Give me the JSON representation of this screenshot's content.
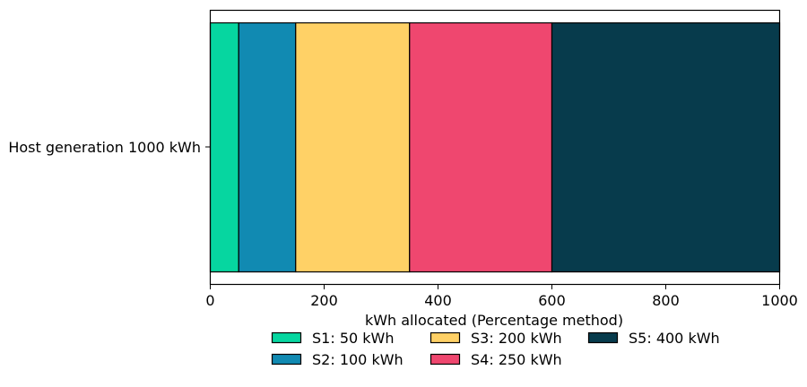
{
  "chart_data": {
    "type": "bar",
    "orientation": "horizontal-stacked",
    "categories": [
      "Host generation 1000 kWh"
    ],
    "series": [
      {
        "name": "S1: 50 kWh",
        "values": [
          50
        ],
        "color": "#06d6a0"
      },
      {
        "name": "S2: 100 kWh",
        "values": [
          100
        ],
        "color": "#118ab2"
      },
      {
        "name": "S3: 200 kWh",
        "values": [
          200
        ],
        "color": "#ffd166"
      },
      {
        "name": "S4: 250 kWh",
        "values": [
          250
        ],
        "color": "#ef476f"
      },
      {
        "name": "S5: 400 kWh",
        "values": [
          400
        ],
        "color": "#073b4c"
      }
    ],
    "xlabel": "kWh allocated (Percentage method)",
    "ylabel": "",
    "xlim": [
      0,
      1000
    ],
    "xticks": [
      "0",
      "200",
      "400",
      "600",
      "800",
      "1000"
    ],
    "grid": false,
    "legend_placement": "bottom-center"
  }
}
